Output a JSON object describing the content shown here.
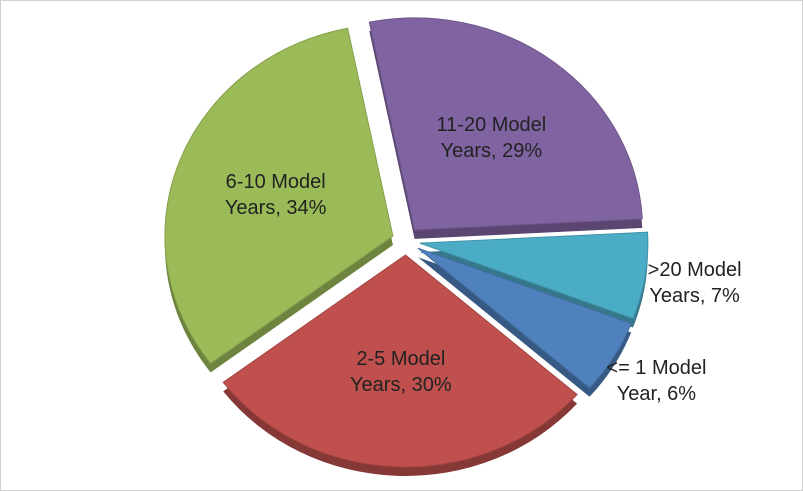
{
  "chart_data": {
    "type": "pie",
    "values": [
      29,
      7,
      6,
      30,
      34
    ],
    "value_labels": [
      "11-20 Model Years, 29%",
      ">20 Model Years, 7%",
      "<= 1 Model Year, 6%",
      "2-5 Model Years, 30%",
      "6-10 Model Years, 34%"
    ],
    "colors": [
      "#8064a2",
      "#4bacc6",
      "#4f81bd",
      "#c0504d",
      "#9bbb59"
    ]
  }
}
